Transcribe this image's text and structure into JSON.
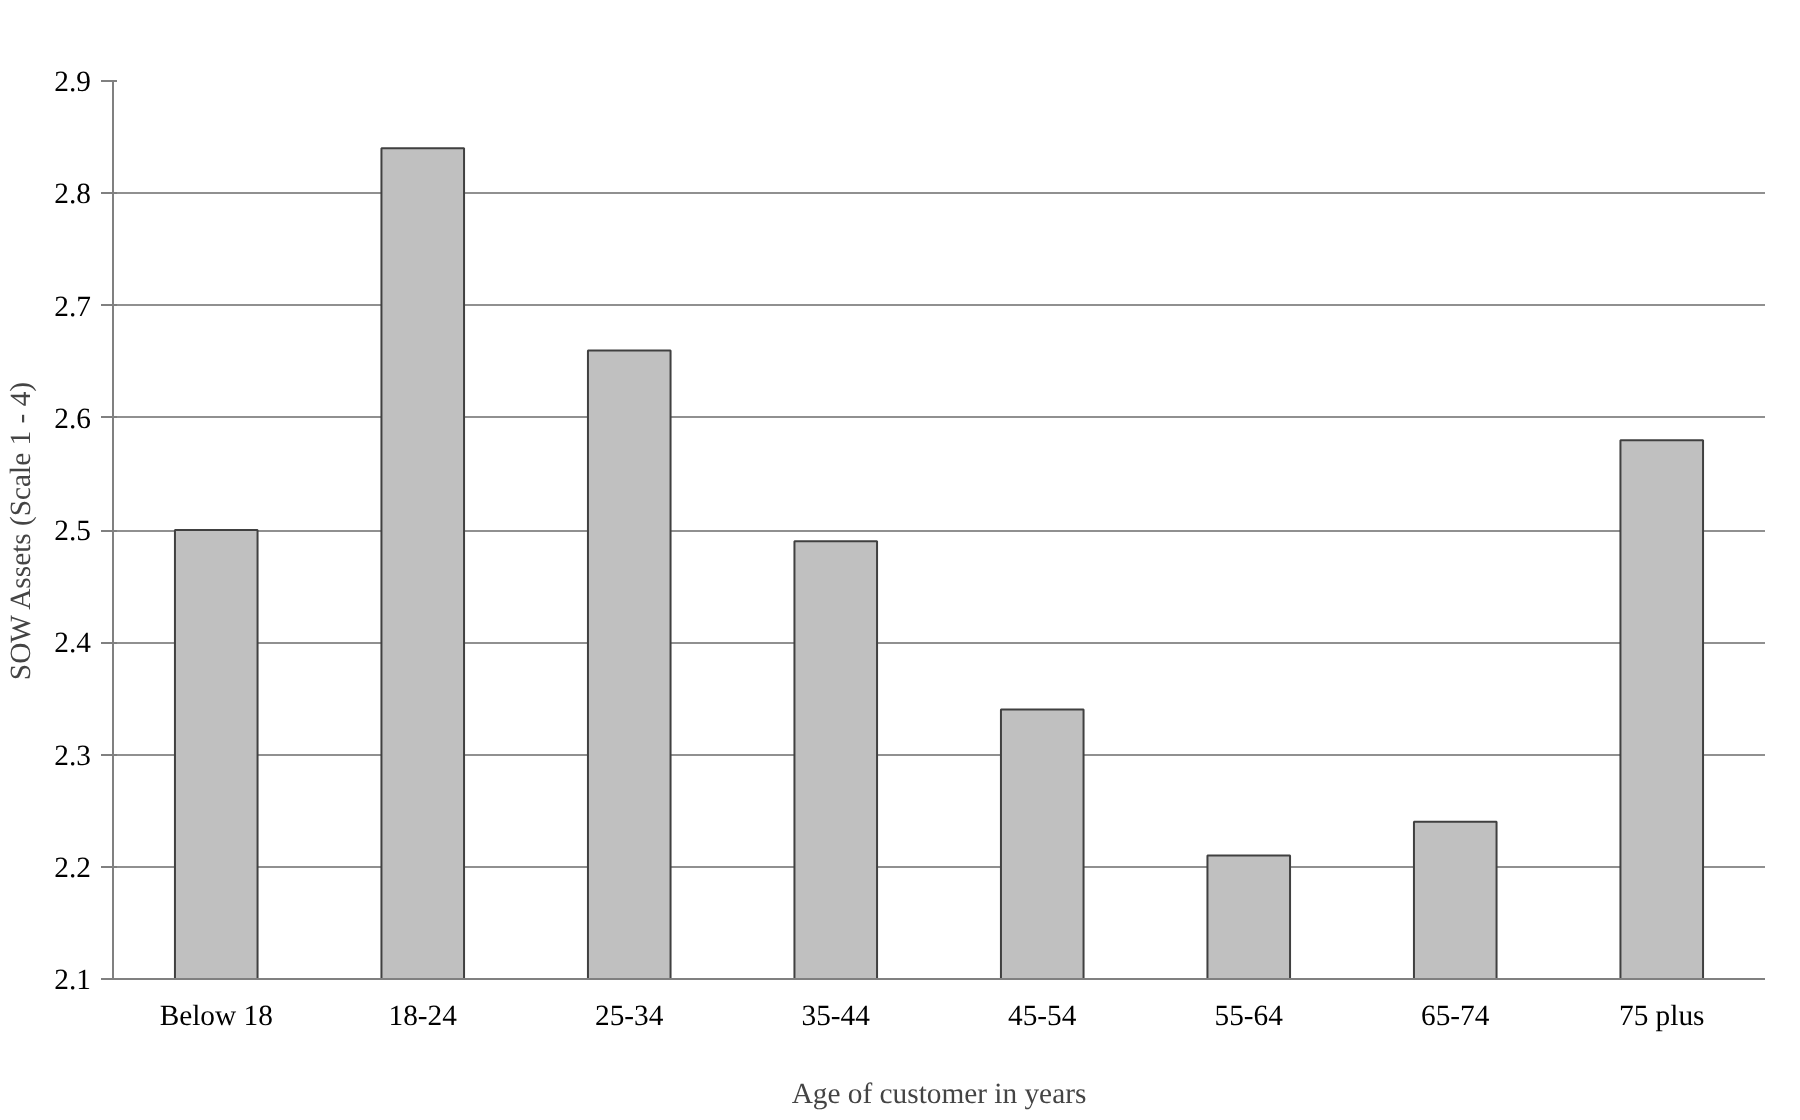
{
  "chart_data": {
    "type": "bar",
    "xlabel": "Age of customer in years",
    "ylabel": "SOW Assets (Scale 1 - 4)",
    "categories": [
      "Below 18",
      "18-24",
      "25-34",
      "35-44",
      "45-54",
      "55-64",
      "65-74",
      "75 plus"
    ],
    "values": [
      2.5,
      2.84,
      2.66,
      2.49,
      2.34,
      2.21,
      2.24,
      2.58
    ],
    "color": "#c0c0c0",
    "ylim": [
      2.1,
      2.9
    ],
    "yticks": [
      2.1,
      2.2,
      2.3,
      2.4,
      2.5,
      2.6,
      2.7,
      2.8,
      2.9
    ],
    "grid": "y"
  }
}
